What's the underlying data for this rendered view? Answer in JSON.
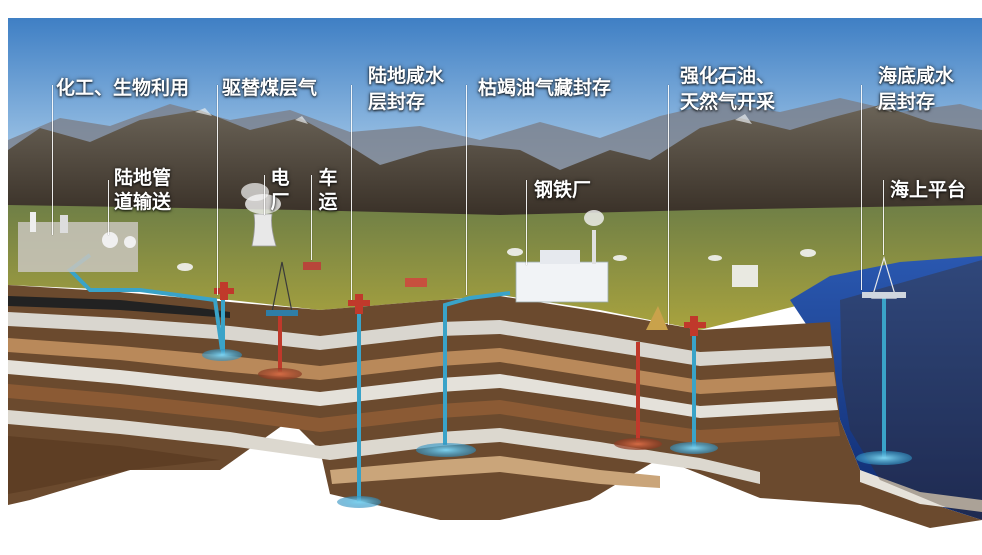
{
  "labels": {
    "chem_bio": "化工、生物利用",
    "ecbm": "驱替煤层气",
    "land_saline_1": "陆地咸水",
    "land_saline_2": "层封存",
    "depleted": "枯竭油气藏封存",
    "eor_1": "强化石油、",
    "eor_2": "天然气开采",
    "sea_saline_1": "海底咸水",
    "sea_saline_2": "层封存",
    "pipeline_1": "陆地管",
    "pipeline_2": "道输送",
    "power_plant": "电厂",
    "truck": "车运",
    "steel": "钢铁厂",
    "platform": "海上平台"
  },
  "colors": {
    "sky_top": "#3f7fc4",
    "sky_bottom": "#cfe2f3",
    "mountain": "#4a4338",
    "grass": "#9a9a3a",
    "pipe": "#3aa3c8",
    "well_red": "#c0392b",
    "sea": "#1f3f8f"
  }
}
